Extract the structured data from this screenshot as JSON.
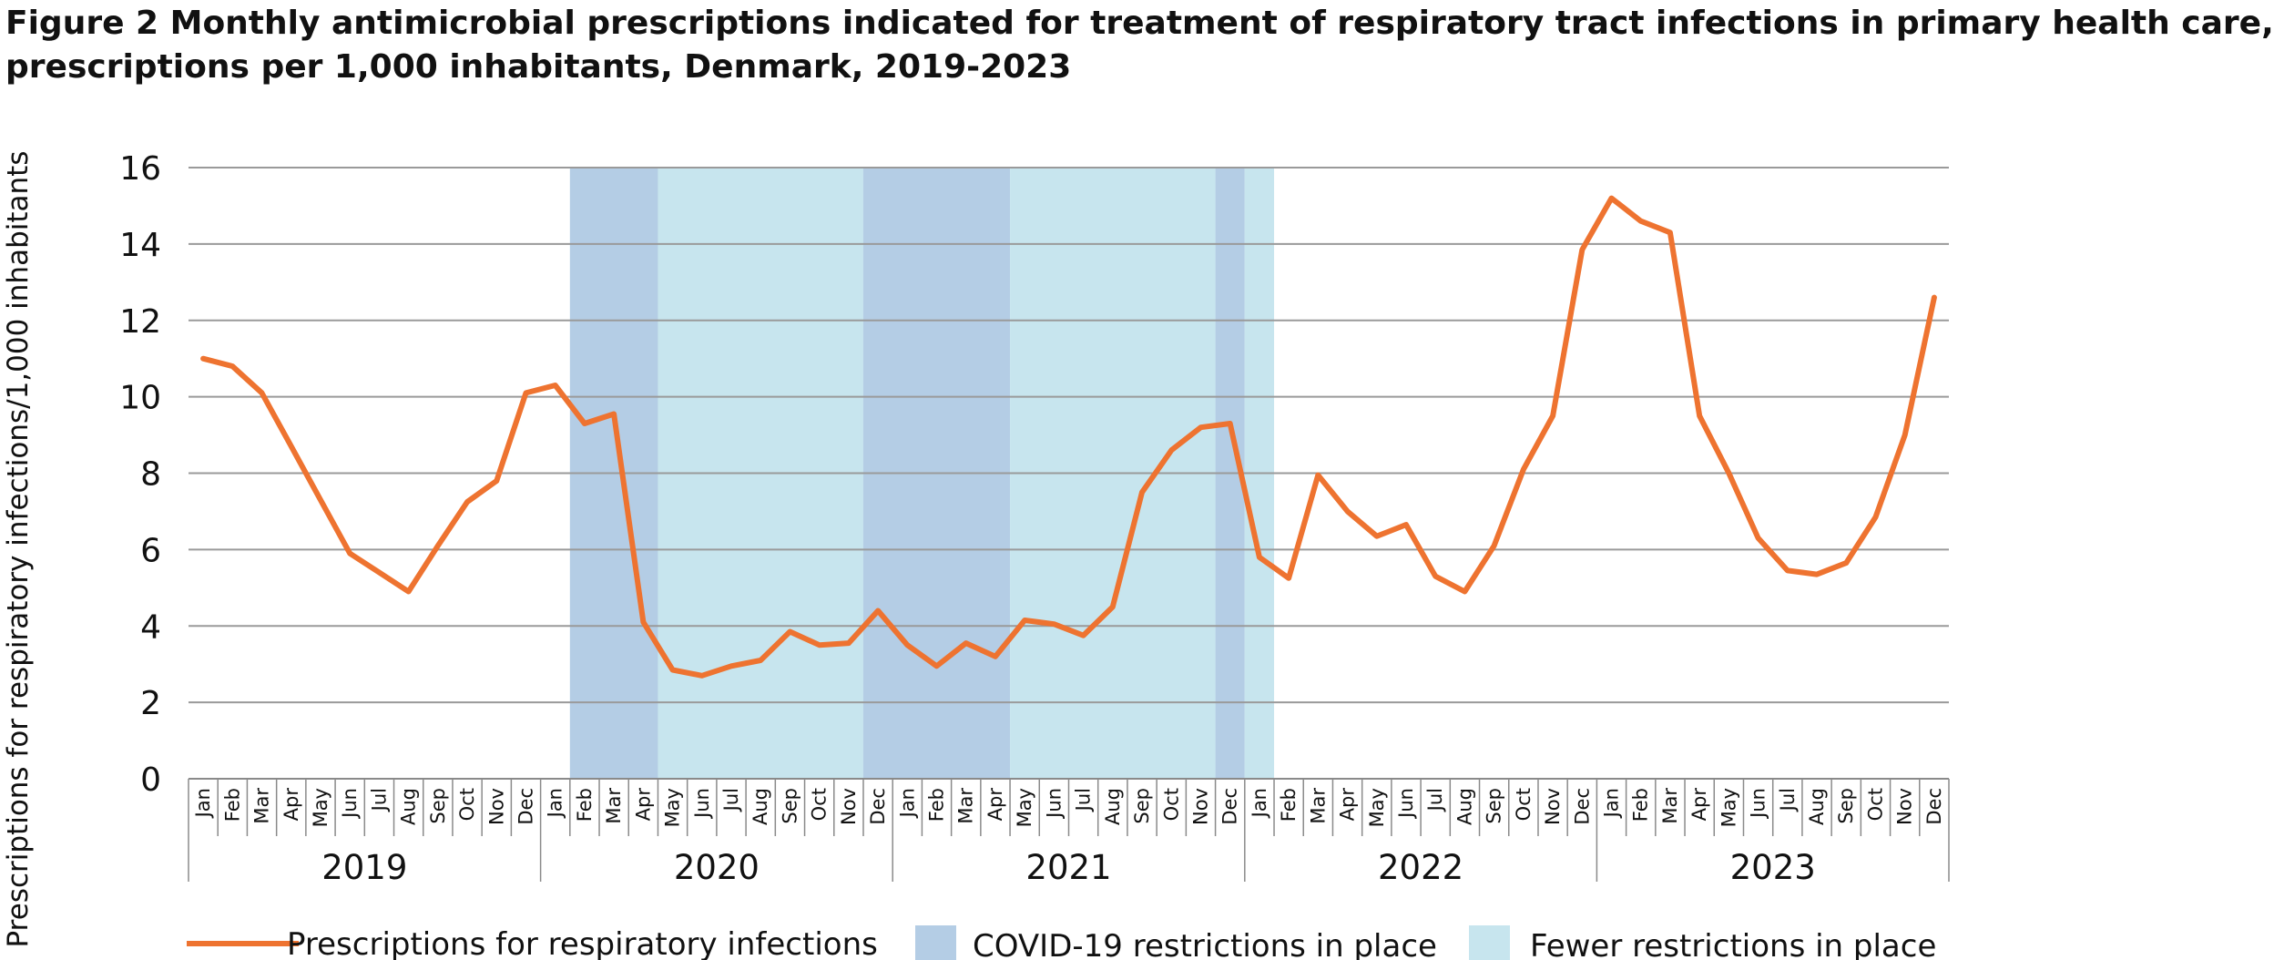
{
  "figure": {
    "title_line1": "Figure 2 Monthly antimicrobial prescriptions indicated for treatment of respiratory tract infections in primary health care,",
    "title_line2": "prescriptions per 1,000 inhabitants, Denmark, 2019-2023"
  },
  "chart_data": {
    "type": "line",
    "title": "Figure 2 Monthly antimicrobial prescriptions indicated for treatment of respiratory tract infections in primary health care, prescriptions per 1,000 inhabitants, Denmark, 2019-2023",
    "ylabel": "Prescriptions for respiratory infections/1,000 inhabitants",
    "xlabel": "",
    "ylim": [
      0,
      16
    ],
    "yticks": [
      0,
      2,
      4,
      6,
      8,
      10,
      12,
      14,
      16
    ],
    "grid": true,
    "legend_position": "bottom",
    "years": [
      "2019",
      "2020",
      "2021",
      "2022",
      "2023"
    ],
    "months": [
      "Jan",
      "Feb",
      "Mar",
      "Apr",
      "May",
      "Jun",
      "Jul",
      "Aug",
      "Sep",
      "Oct",
      "Nov",
      "Dec"
    ],
    "series": [
      {
        "name": "Prescriptions for respiratory infections",
        "color": "#ee7330",
        "values": [
          11.0,
          10.8,
          10.1,
          8.7,
          7.3,
          5.9,
          5.4,
          4.9,
          6.1,
          7.25,
          7.8,
          10.1,
          10.3,
          9.3,
          9.55,
          4.1,
          2.85,
          2.7,
          2.95,
          3.1,
          3.85,
          3.5,
          3.55,
          4.4,
          3.5,
          2.95,
          3.55,
          3.2,
          4.15,
          4.05,
          3.75,
          4.5,
          7.5,
          8.6,
          9.2,
          9.3,
          5.8,
          5.25,
          7.95,
          7.0,
          6.35,
          6.65,
          5.3,
          4.9,
          6.1,
          8.1,
          9.5,
          13.85,
          15.2,
          14.6,
          14.3,
          9.5,
          8.0,
          6.3,
          5.45,
          5.35,
          5.65,
          6.85,
          9.0,
          12.6
        ]
      }
    ],
    "shaded_periods": [
      {
        "name": "COVID-19 restrictions in place",
        "color": "#b4cde5",
        "from": "2020-Feb",
        "to": "2020-Apr"
      },
      {
        "name": "Fewer restrictions in place",
        "color": "#c7e5ee",
        "from": "2020-May",
        "to": "2020-Nov"
      },
      {
        "name": "COVID-19 restrictions in place",
        "color": "#b4cde5",
        "from": "2020-Dec",
        "to": "2021-Apr"
      },
      {
        "name": "Fewer restrictions in place",
        "color": "#c7e5ee",
        "from": "2021-May",
        "to": "2021-Nov"
      },
      {
        "name": "COVID-19 restrictions in place",
        "color": "#b4cde5",
        "from": "2021-Dec",
        "to": "2021-Dec"
      },
      {
        "name": "Fewer restrictions in place",
        "color": "#c7e5ee",
        "from": "2022-Jan",
        "to": "2022-Jan"
      }
    ],
    "legend": [
      {
        "label": "Prescriptions for respiratory infections",
        "kind": "line",
        "color": "#ee7330"
      },
      {
        "label": "COVID-19 restrictions in place",
        "kind": "box",
        "color": "#b4cde5"
      },
      {
        "label": "Fewer restrictions in place",
        "kind": "box",
        "color": "#c7e5ee"
      }
    ]
  }
}
